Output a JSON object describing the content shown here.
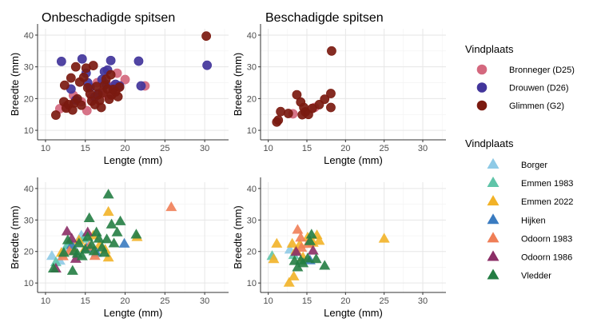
{
  "chart_data": [
    {
      "type": "scatter",
      "title": "Onbeschadigde spitsen",
      "xlabel": "Lengte (mm)",
      "ylabel": "Breedte (mm)",
      "xlim": [
        9,
        33
      ],
      "ylim": [
        7,
        42
      ],
      "xticks": [
        "10",
        "15",
        "20",
        "25",
        "30"
      ],
      "yticks": [
        "10",
        "20",
        "30",
        "40"
      ],
      "grid": true,
      "marker": "circle",
      "series": [
        {
          "name": "Bronneger (D25)",
          "color": "#d4687e",
          "points": [
            [
              11.8,
              16.8
            ],
            [
              12.5,
              17.5
            ],
            [
              13.5,
              21
            ],
            [
              14.5,
              19
            ],
            [
              15.2,
              16.2
            ],
            [
              15.8,
              20.5
            ],
            [
              16.5,
              25
            ],
            [
              17.2,
              22.5
            ],
            [
              17.8,
              21
            ],
            [
              18.5,
              24
            ],
            [
              19,
              28
            ],
            [
              20,
              26
            ],
            [
              22.5,
              24
            ]
          ]
        },
        {
          "name": "Drouwen (D26)",
          "color": "#42359b",
          "points": [
            [
              12,
              31.7
            ],
            [
              13.2,
              23
            ],
            [
              13.8,
              19.5
            ],
            [
              14.6,
              32.5
            ],
            [
              15.1,
              28
            ],
            [
              15.3,
              25
            ],
            [
              15.6,
              23.5
            ],
            [
              16.2,
              20.5
            ],
            [
              16.6,
              21.5
            ],
            [
              17.1,
              26
            ],
            [
              17.4,
              28.5
            ],
            [
              17.6,
              24.5
            ],
            [
              17.8,
              29
            ],
            [
              18.2,
              32
            ],
            [
              18.5,
              23
            ],
            [
              18.8,
              24.5
            ],
            [
              19.3,
              24
            ],
            [
              21.7,
              31.8
            ],
            [
              22,
              24
            ],
            [
              30.3,
              30.5
            ]
          ]
        },
        {
          "name": "Glimmen (G2)",
          "color": "#7b1a10",
          "points": [
            [
              11.3,
              14.8
            ],
            [
              12.3,
              19
            ],
            [
              12.4,
              24.2
            ],
            [
              12.6,
              17
            ],
            [
              12.9,
              18.1
            ],
            [
              13.2,
              26.5
            ],
            [
              13.4,
              16.4
            ],
            [
              13.6,
              18.6
            ],
            [
              13.8,
              30
            ],
            [
              14,
              19.9
            ],
            [
              14.3,
              25.2
            ],
            [
              14.5,
              17.9
            ],
            [
              14.8,
              26.7
            ],
            [
              15.1,
              29.6
            ],
            [
              15.3,
              23.4
            ],
            [
              15.6,
              21.5
            ],
            [
              15.8,
              19.2
            ],
            [
              16,
              30.4
            ],
            [
              16.2,
              18.1
            ],
            [
              16.4,
              23.8
            ],
            [
              16.6,
              21.2
            ],
            [
              16.8,
              19.4
            ],
            [
              17,
              17.2
            ],
            [
              17.2,
              21.8
            ],
            [
              17.4,
              24.2
            ],
            [
              17.6,
              26.1
            ],
            [
              17.8,
              23
            ],
            [
              18,
              19.8
            ],
            [
              18.2,
              27.5
            ],
            [
              18.3,
              21.1
            ],
            [
              18.5,
              22.9
            ],
            [
              18.8,
              22.1
            ],
            [
              19.1,
              20.6
            ],
            [
              19.3,
              23.6
            ],
            [
              30.2,
              39.7
            ]
          ]
        }
      ]
    },
    {
      "type": "scatter",
      "title": "Beschadigde spitsen",
      "xlabel": "Lengte (mm)",
      "ylabel": "Breedte (mm)",
      "xlim": [
        9,
        33
      ],
      "ylim": [
        7,
        42
      ],
      "xticks": [
        "10",
        "15",
        "20",
        "25",
        "30"
      ],
      "yticks": [
        "10",
        "20",
        "30",
        "40"
      ],
      "grid": true,
      "marker": "circle",
      "series": [
        {
          "name": "Bronneger (D25)",
          "color": "#d4687e",
          "points": [
            [
              13.2,
              15.2
            ],
            [
              16,
              17.2
            ]
          ]
        },
        {
          "name": "Drouwen (D26)",
          "color": "#42359b",
          "points": []
        },
        {
          "name": "Glimmen (G2)",
          "color": "#7b1a10",
          "points": [
            [
              11.1,
              12.6
            ],
            [
              11.3,
              13.2
            ],
            [
              11.6,
              15.9
            ],
            [
              12.6,
              15.3
            ],
            [
              13.7,
              21.2
            ],
            [
              14.2,
              18.9
            ],
            [
              14.4,
              14.9
            ],
            [
              14.6,
              17.2
            ],
            [
              14.8,
              15.8
            ],
            [
              15.2,
              15
            ],
            [
              15.7,
              16.9
            ],
            [
              16.6,
              18.1
            ],
            [
              17.3,
              19.8
            ],
            [
              18.1,
              21.6
            ],
            [
              18.1,
              17.2
            ],
            [
              18.2,
              35
            ]
          ]
        }
      ]
    },
    {
      "type": "scatter",
      "title": "",
      "xlabel": "Lengte (mm)",
      "ylabel": "Breedte (mm)",
      "xlim": [
        9,
        33
      ],
      "ylim": [
        7,
        42
      ],
      "xticks": [
        "10",
        "15",
        "20",
        "25",
        "30"
      ],
      "yticks": [
        "10",
        "20",
        "30",
        "40"
      ],
      "grid": true,
      "marker": "triangle",
      "series": [
        {
          "name": "Borger",
          "color": "#8ecae6",
          "points": [
            [
              10.8,
              18.5
            ],
            [
              11.8,
              17
            ],
            [
              12.5,
              21
            ],
            [
              14.5,
              25
            ]
          ]
        },
        {
          "name": "Emmen 1983",
          "color": "#5fc4a8",
          "points": [
            [
              11.3,
              16.5
            ],
            [
              12.8,
              22
            ],
            [
              14.8,
              24
            ]
          ]
        },
        {
          "name": "Emmen 2022",
          "color": "#f2b227",
          "points": [
            [
              12,
              19.5
            ],
            [
              13.5,
              21
            ],
            [
              14.2,
              23.5
            ],
            [
              15,
              21
            ],
            [
              16,
              25
            ],
            [
              16.8,
              22
            ],
            [
              17.5,
              20.5
            ],
            [
              17.9,
              32.5
            ],
            [
              17.9,
              18
            ],
            [
              21.5,
              24.5
            ]
          ]
        },
        {
          "name": "Hijken",
          "color": "#3a7bc0",
          "points": [
            [
              13.3,
              22
            ],
            [
              15.2,
              21
            ],
            [
              16.4,
              19.5
            ],
            [
              19.9,
              22.4
            ]
          ]
        },
        {
          "name": "Odoorn 1983",
          "color": "#ef7e56",
          "points": [
            [
              12.2,
              18.4
            ],
            [
              13,
              20
            ],
            [
              15.5,
              21.5
            ],
            [
              16.2,
              18.5
            ],
            [
              25.8,
              34
            ]
          ]
        },
        {
          "name": "Odoorn 1986",
          "color": "#8b2e66",
          "points": [
            [
              11.3,
              14.5
            ],
            [
              12.7,
              26.3
            ],
            [
              13.3,
              24
            ],
            [
              13.8,
              17.6
            ],
            [
              15.3,
              26
            ]
          ]
        },
        {
          "name": "Vledder",
          "color": "#237d43",
          "points": [
            [
              11,
              14.5
            ],
            [
              12.3,
              19.5
            ],
            [
              12.8,
              23.5
            ],
            [
              13.4,
              13.8
            ],
            [
              13.6,
              20
            ],
            [
              14,
              19.2
            ],
            [
              14.2,
              22.5
            ],
            [
              14.6,
              18.4
            ],
            [
              15,
              20.5
            ],
            [
              15.3,
              24.5
            ],
            [
              15.5,
              30.5
            ],
            [
              15.8,
              22
            ],
            [
              16.1,
              20
            ],
            [
              16.4,
              26
            ],
            [
              16.7,
              24
            ],
            [
              17.1,
              21.2
            ],
            [
              17.4,
              19.5
            ],
            [
              17.7,
              23.8
            ],
            [
              17.9,
              38
            ],
            [
              18.3,
              28.5
            ],
            [
              18.6,
              22.5
            ],
            [
              19,
              26
            ],
            [
              19.4,
              29.5
            ],
            [
              21.4,
              25.3
            ]
          ]
        }
      ]
    },
    {
      "type": "scatter",
      "title": "",
      "xlabel": "Lengte (mm)",
      "ylabel": "Breedte (mm)",
      "xlim": [
        9,
        33
      ],
      "ylim": [
        7,
        42
      ],
      "xticks": [
        "10",
        "15",
        "20",
        "25",
        "30"
      ],
      "yticks": [
        "10",
        "20",
        "30",
        "40"
      ],
      "grid": true,
      "marker": "triangle",
      "series": [
        {
          "name": "Borger",
          "color": "#8ecae6",
          "points": [
            [
              12.8,
              20.5
            ]
          ]
        },
        {
          "name": "Emmen 1983",
          "color": "#5fc4a8",
          "points": [
            [
              10.5,
              18.5
            ],
            [
              13.3,
              18.8
            ]
          ]
        },
        {
          "name": "Emmen 2022",
          "color": "#f2b227",
          "points": [
            [
              10.7,
              17.5
            ],
            [
              11.1,
              22.4
            ],
            [
              12.7,
              10
            ],
            [
              13.1,
              22.4
            ],
            [
              13.3,
              12
            ],
            [
              13.6,
              20.3
            ],
            [
              14.1,
              22.2
            ],
            [
              14.5,
              18.1
            ],
            [
              15.1,
              24.4
            ],
            [
              15.8,
              22.7
            ],
            [
              16.3,
              25.1
            ],
            [
              16.6,
              23.3
            ],
            [
              25,
              24
            ]
          ]
        },
        {
          "name": "Hijken",
          "color": "#3a7bc0",
          "points": [
            [
              15.4,
              17.1
            ]
          ]
        },
        {
          "name": "Odoorn 1983",
          "color": "#ef7e56",
          "points": [
            [
              13.8,
              26.8
            ],
            [
              14.2,
              24.3
            ],
            [
              14.3,
              21.1
            ],
            [
              15.1,
              22.3
            ]
          ]
        },
        {
          "name": "Odoorn 1986",
          "color": "#8b2e66",
          "points": [
            [
              13.6,
              19.8
            ],
            [
              15.8,
              20.2
            ]
          ]
        },
        {
          "name": "Vledder",
          "color": "#237d43",
          "points": [
            [
              13.4,
              16.9
            ],
            [
              13.8,
              14.9
            ],
            [
              14.2,
              17.1
            ],
            [
              14.5,
              16.2
            ],
            [
              15.1,
              17.7
            ],
            [
              15.4,
              23.2
            ],
            [
              15.6,
              25.3
            ],
            [
              16.2,
              17.5
            ],
            [
              17.3,
              15.4
            ]
          ]
        }
      ]
    }
  ],
  "legends": [
    {
      "title": "Vindplaats",
      "marker": "circle",
      "items": [
        {
          "label": "Bronneger (D25)",
          "color": "#d4687e"
        },
        {
          "label": "Drouwen (D26)",
          "color": "#42359b"
        },
        {
          "label": "Glimmen (G2)",
          "color": "#7b1a10"
        }
      ]
    },
    {
      "title": "Vindplaats",
      "marker": "triangle",
      "items": [
        {
          "label": "Borger",
          "color": "#8ecae6"
        },
        {
          "label": "Emmen 1983",
          "color": "#5fc4a8"
        },
        {
          "label": "Emmen 2022",
          "color": "#f2b227"
        },
        {
          "label": "Hijken",
          "color": "#3a7bc0"
        },
        {
          "label": "Odoorn 1983",
          "color": "#ef7e56"
        },
        {
          "label": "Odoorn 1986",
          "color": "#8b2e66"
        },
        {
          "label": "Vledder",
          "color": "#237d43"
        }
      ]
    }
  ]
}
